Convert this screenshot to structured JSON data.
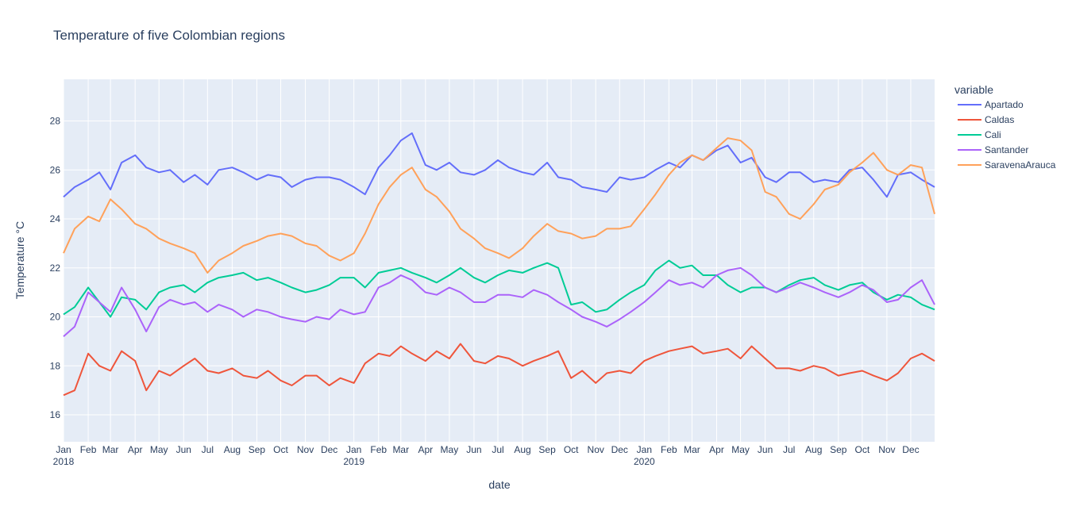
{
  "chart_data": {
    "type": "line",
    "title": "Temperature of five Colombian regions",
    "xlabel": "date",
    "ylabel": "Temperature  °C",
    "legend_title": "variable",
    "legend_position": "right",
    "grid": true,
    "xlim": [
      "2018-01-01",
      "2020-12-31"
    ],
    "ylim": [
      14.9,
      29.7
    ],
    "yticks": [
      16,
      18,
      20,
      22,
      24,
      26,
      28
    ],
    "xticks": [
      {
        "date": "2018-01-01",
        "label": "Jan",
        "year": "2018"
      },
      {
        "date": "2018-02-01",
        "label": "Feb"
      },
      {
        "date": "2018-03-01",
        "label": "Mar"
      },
      {
        "date": "2018-04-01",
        "label": "Apr"
      },
      {
        "date": "2018-05-01",
        "label": "May"
      },
      {
        "date": "2018-06-01",
        "label": "Jun"
      },
      {
        "date": "2018-07-01",
        "label": "Jul"
      },
      {
        "date": "2018-08-01",
        "label": "Aug"
      },
      {
        "date": "2018-09-01",
        "label": "Sep"
      },
      {
        "date": "2018-10-01",
        "label": "Oct"
      },
      {
        "date": "2018-11-01",
        "label": "Nov"
      },
      {
        "date": "2018-12-01",
        "label": "Dec"
      },
      {
        "date": "2019-01-01",
        "label": "Jan",
        "year": "2019"
      },
      {
        "date": "2019-02-01",
        "label": "Feb"
      },
      {
        "date": "2019-03-01",
        "label": "Mar"
      },
      {
        "date": "2019-04-01",
        "label": "Apr"
      },
      {
        "date": "2019-05-01",
        "label": "May"
      },
      {
        "date": "2019-06-01",
        "label": "Jun"
      },
      {
        "date": "2019-07-01",
        "label": "Jul"
      },
      {
        "date": "2019-08-01",
        "label": "Aug"
      },
      {
        "date": "2019-09-01",
        "label": "Sep"
      },
      {
        "date": "2019-10-01",
        "label": "Oct"
      },
      {
        "date": "2019-11-01",
        "label": "Nov"
      },
      {
        "date": "2019-12-01",
        "label": "Dec"
      },
      {
        "date": "2020-01-01",
        "label": "Jan",
        "year": "2020"
      },
      {
        "date": "2020-02-01",
        "label": "Feb"
      },
      {
        "date": "2020-03-01",
        "label": "Mar"
      },
      {
        "date": "2020-04-01",
        "label": "Apr"
      },
      {
        "date": "2020-05-01",
        "label": "May"
      },
      {
        "date": "2020-06-01",
        "label": "Jun"
      },
      {
        "date": "2020-07-01",
        "label": "Jul"
      },
      {
        "date": "2020-08-01",
        "label": "Aug"
      },
      {
        "date": "2020-09-01",
        "label": "Sep"
      },
      {
        "date": "2020-10-01",
        "label": "Oct"
      },
      {
        "date": "2020-11-01",
        "label": "Nov"
      },
      {
        "date": "2020-12-01",
        "label": "Dec"
      }
    ],
    "x": [
      "2018-01-01",
      "2018-01-15",
      "2018-02-01",
      "2018-02-15",
      "2018-03-01",
      "2018-03-15",
      "2018-04-01",
      "2018-04-15",
      "2018-05-01",
      "2018-05-15",
      "2018-06-01",
      "2018-06-15",
      "2018-07-01",
      "2018-07-15",
      "2018-08-01",
      "2018-08-15",
      "2018-09-01",
      "2018-09-15",
      "2018-10-01",
      "2018-10-15",
      "2018-11-01",
      "2018-11-15",
      "2018-12-01",
      "2018-12-15",
      "2019-01-01",
      "2019-01-15",
      "2019-02-01",
      "2019-02-15",
      "2019-03-01",
      "2019-03-15",
      "2019-04-01",
      "2019-04-15",
      "2019-05-01",
      "2019-05-15",
      "2019-06-01",
      "2019-06-15",
      "2019-07-01",
      "2019-07-15",
      "2019-08-01",
      "2019-08-15",
      "2019-09-01",
      "2019-09-15",
      "2019-10-01",
      "2019-10-15",
      "2019-11-01",
      "2019-11-15",
      "2019-12-01",
      "2019-12-15",
      "2020-01-01",
      "2020-01-15",
      "2020-02-01",
      "2020-02-15",
      "2020-03-01",
      "2020-03-15",
      "2020-04-01",
      "2020-04-15",
      "2020-05-01",
      "2020-05-15",
      "2020-06-01",
      "2020-06-15",
      "2020-07-01",
      "2020-07-15",
      "2020-08-01",
      "2020-08-15",
      "2020-09-01",
      "2020-09-15",
      "2020-10-01",
      "2020-10-15",
      "2020-11-01",
      "2020-11-15",
      "2020-12-01",
      "2020-12-15",
      "2020-12-31"
    ],
    "series": [
      {
        "name": "Apartado",
        "color": "#636efa",
        "values": [
          24.9,
          25.3,
          25.6,
          25.9,
          25.2,
          26.3,
          26.6,
          26.1,
          25.9,
          26.0,
          25.5,
          25.8,
          25.4,
          26.0,
          26.1,
          25.9,
          25.6,
          25.8,
          25.7,
          25.3,
          25.6,
          25.7,
          25.7,
          25.6,
          25.3,
          25.0,
          26.1,
          26.6,
          27.2,
          27.5,
          26.2,
          26.0,
          26.3,
          25.9,
          25.8,
          26.0,
          26.4,
          26.1,
          25.9,
          25.8,
          26.3,
          25.7,
          25.6,
          25.3,
          25.2,
          25.1,
          25.7,
          25.6,
          25.7,
          26.0,
          26.3,
          26.1,
          26.6,
          26.4,
          26.8,
          27.0,
          26.3,
          26.5,
          25.7,
          25.5,
          25.9,
          25.9,
          25.5,
          25.6,
          25.5,
          26.0,
          26.1,
          25.6,
          24.9,
          25.8,
          25.9,
          25.6,
          25.3
        ]
      },
      {
        "name": "Caldas",
        "color": "#ef553b",
        "values": [
          16.8,
          17.0,
          18.5,
          18.0,
          17.8,
          18.6,
          18.2,
          17.0,
          17.8,
          17.6,
          18.0,
          18.3,
          17.8,
          17.7,
          17.9,
          17.6,
          17.5,
          17.8,
          17.4,
          17.2,
          17.6,
          17.6,
          17.2,
          17.5,
          17.3,
          18.1,
          18.5,
          18.4,
          18.8,
          18.5,
          18.2,
          18.6,
          18.3,
          18.9,
          18.2,
          18.1,
          18.4,
          18.3,
          18.0,
          18.2,
          18.4,
          18.6,
          17.5,
          17.8,
          17.3,
          17.7,
          17.8,
          17.7,
          18.2,
          18.4,
          18.6,
          18.7,
          18.8,
          18.5,
          18.6,
          18.7,
          18.3,
          18.8,
          18.3,
          17.9,
          17.9,
          17.8,
          18.0,
          17.9,
          17.6,
          17.7,
          17.8,
          17.6,
          17.4,
          17.7,
          18.3,
          18.5,
          18.2
        ]
      },
      {
        "name": "Cali",
        "color": "#00cc96",
        "values": [
          20.1,
          20.4,
          21.2,
          20.6,
          20.0,
          20.8,
          20.7,
          20.3,
          21.0,
          21.2,
          21.3,
          21.0,
          21.4,
          21.6,
          21.7,
          21.8,
          21.5,
          21.6,
          21.4,
          21.2,
          21.0,
          21.1,
          21.3,
          21.6,
          21.6,
          21.2,
          21.8,
          21.9,
          22.0,
          21.8,
          21.6,
          21.4,
          21.7,
          22.0,
          21.6,
          21.4,
          21.7,
          21.9,
          21.8,
          22.0,
          22.2,
          22.0,
          20.5,
          20.6,
          20.2,
          20.3,
          20.7,
          21.0,
          21.3,
          21.9,
          22.3,
          22.0,
          22.1,
          21.7,
          21.7,
          21.3,
          21.0,
          21.2,
          21.2,
          21.0,
          21.3,
          21.5,
          21.6,
          21.3,
          21.1,
          21.3,
          21.4,
          21.0,
          20.7,
          20.9,
          20.8,
          20.5,
          20.3
        ]
      },
      {
        "name": "Santander",
        "color": "#ab63fa",
        "values": [
          19.2,
          19.6,
          21.0,
          20.6,
          20.2,
          21.2,
          20.3,
          19.4,
          20.4,
          20.7,
          20.5,
          20.6,
          20.2,
          20.5,
          20.3,
          20.0,
          20.3,
          20.2,
          20.0,
          19.9,
          19.8,
          20.0,
          19.9,
          20.3,
          20.1,
          20.2,
          21.2,
          21.4,
          21.7,
          21.5,
          21.0,
          20.9,
          21.2,
          21.0,
          20.6,
          20.6,
          20.9,
          20.9,
          20.8,
          21.1,
          20.9,
          20.6,
          20.3,
          20.0,
          19.8,
          19.6,
          19.9,
          20.2,
          20.6,
          21.0,
          21.5,
          21.3,
          21.4,
          21.2,
          21.7,
          21.9,
          22.0,
          21.7,
          21.2,
          21.0,
          21.2,
          21.4,
          21.2,
          21.0,
          20.8,
          21.0,
          21.3,
          21.1,
          20.6,
          20.7,
          21.2,
          21.5,
          20.5
        ]
      },
      {
        "name": "SaravenaArauca",
        "color": "#ffa15a",
        "values": [
          22.6,
          23.6,
          24.1,
          23.9,
          24.8,
          24.4,
          23.8,
          23.6,
          23.2,
          23.0,
          22.8,
          22.6,
          21.8,
          22.3,
          22.6,
          22.9,
          23.1,
          23.3,
          23.4,
          23.3,
          23.0,
          22.9,
          22.5,
          22.3,
          22.6,
          23.4,
          24.6,
          25.3,
          25.8,
          26.1,
          25.2,
          24.9,
          24.3,
          23.6,
          23.2,
          22.8,
          22.6,
          22.4,
          22.8,
          23.3,
          23.8,
          23.5,
          23.4,
          23.2,
          23.3,
          23.6,
          23.6,
          23.7,
          24.4,
          25.0,
          25.8,
          26.3,
          26.6,
          26.4,
          26.9,
          27.3,
          27.2,
          26.8,
          25.1,
          24.9,
          24.2,
          24.0,
          24.6,
          25.2,
          25.4,
          25.9,
          26.3,
          26.7,
          26.0,
          25.8,
          26.2,
          26.1,
          24.2
        ]
      }
    ]
  }
}
